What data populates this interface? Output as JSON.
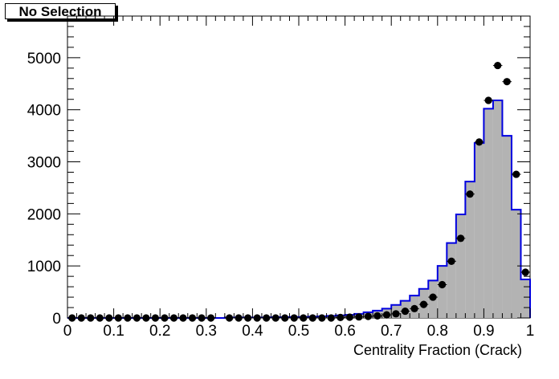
{
  "selection_label": "No Selection",
  "colors": {
    "histogram_fill": "#b3b3b3",
    "histogram_line": "#0000e0",
    "points": "#000000"
  },
  "chart_data": {
    "type": "bar",
    "title": "",
    "xlabel": "Centrality Fraction (Crack)",
    "ylabel": "",
    "xlim": [
      0,
      1
    ],
    "ylim": [
      0,
      5800
    ],
    "bin_width": 0.02,
    "x_tick_labels": [
      "0",
      "0.1",
      "0.2",
      "0.3",
      "0.4",
      "0.5",
      "0.6",
      "0.7",
      "0.8",
      "0.9",
      "1"
    ],
    "y_tick_labels": [
      "0",
      "1000",
      "2000",
      "3000",
      "4000",
      "5000"
    ],
    "grid": false,
    "legend": "none",
    "series": [
      {
        "kind": "histogram",
        "bin_centers": [
          0.01,
          0.03,
          0.05,
          0.07,
          0.09,
          0.11,
          0.13,
          0.15,
          0.17,
          0.19,
          0.21,
          0.23,
          0.25,
          0.27,
          0.29,
          0.31,
          0.33,
          0.35,
          0.37,
          0.39,
          0.41,
          0.43,
          0.45,
          0.47,
          0.49,
          0.51,
          0.53,
          0.55,
          0.57,
          0.59,
          0.61,
          0.63,
          0.65,
          0.67,
          0.69,
          0.71,
          0.73,
          0.75,
          0.77,
          0.79,
          0.81,
          0.83,
          0.85,
          0.87,
          0.89,
          0.91,
          0.93,
          0.95,
          0.97,
          0.99
        ],
        "values": [
          0,
          0,
          0,
          0,
          0,
          0,
          0,
          0,
          0,
          0,
          0,
          0,
          0,
          0,
          0,
          0,
          0,
          10,
          10,
          10,
          10,
          10,
          15,
          15,
          20,
          20,
          25,
          30,
          40,
          50,
          60,
          80,
          110,
          140,
          180,
          250,
          330,
          430,
          560,
          720,
          1000,
          1440,
          1990,
          2620,
          3360,
          4020,
          4180,
          3500,
          2080,
          740
        ]
      },
      {
        "kind": "points",
        "bin_centers": [
          0.01,
          0.03,
          0.05,
          0.07,
          0.09,
          0.11,
          0.13,
          0.15,
          0.17,
          0.19,
          0.21,
          0.23,
          0.25,
          0.27,
          0.29,
          0.31,
          0.33,
          0.35,
          0.37,
          0.39,
          0.41,
          0.43,
          0.45,
          0.47,
          0.49,
          0.51,
          0.53,
          0.55,
          0.57,
          0.59,
          0.61,
          0.63,
          0.65,
          0.67,
          0.69,
          0.71,
          0.73,
          0.75,
          0.77,
          0.79,
          0.81,
          0.83,
          0.85,
          0.87,
          0.89,
          0.91,
          0.93,
          0.95,
          0.97,
          0.99
        ],
        "values": [
          0,
          0,
          0,
          0,
          0,
          0,
          0,
          0,
          0,
          0,
          0,
          0,
          0,
          0,
          0,
          0,
          null,
          0,
          0,
          0,
          0,
          0,
          0,
          0,
          0,
          0,
          0,
          0,
          0,
          10,
          15,
          20,
          30,
          40,
          60,
          80,
          130,
          180,
          260,
          400,
          640,
          1090,
          1530,
          2380,
          3380,
          4180,
          4850,
          4540,
          2760,
          880
        ]
      }
    ]
  }
}
